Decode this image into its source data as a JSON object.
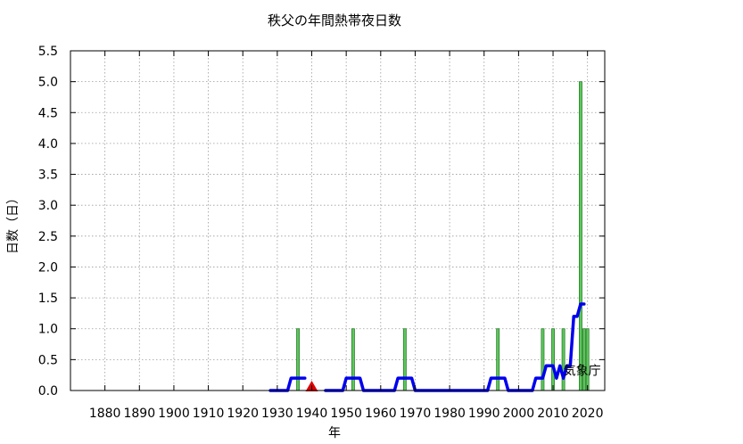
{
  "chart_data": {
    "type": "bar",
    "title": "秩父の年間熱帯夜日数",
    "xlabel": "年",
    "ylabel": "日数（日）",
    "xlim": [
      1870,
      2025
    ],
    "ylim": [
      0,
      5.5
    ],
    "x_ticks": [
      1880,
      1890,
      1900,
      1910,
      1920,
      1930,
      1940,
      1950,
      1960,
      1970,
      1980,
      1990,
      2000,
      2010,
      2020
    ],
    "y_ticks": [
      "0.0",
      "0.5",
      "1.0",
      "1.5",
      "2.0",
      "2.5",
      "3.0",
      "3.5",
      "4.0",
      "4.5",
      "5.0",
      "5.5"
    ],
    "grid": true,
    "series": [
      {
        "type": "bar",
        "color": "#5cc85c",
        "points": [
          {
            "x": 1936,
            "y": 1
          },
          {
            "x": 1952,
            "y": 1
          },
          {
            "x": 1967,
            "y": 1
          },
          {
            "x": 1994,
            "y": 1
          },
          {
            "x": 2007,
            "y": 1
          },
          {
            "x": 2010,
            "y": 1
          },
          {
            "x": 2013,
            "y": 1
          },
          {
            "x": 2018,
            "y": 5
          },
          {
            "x": 2019,
            "y": 1
          },
          {
            "x": 2020,
            "y": 1
          }
        ]
      },
      {
        "type": "line",
        "color": "#0000ee",
        "segments": [
          [
            {
              "x": 1928,
              "y": 0
            },
            {
              "x": 1933,
              "y": 0
            },
            {
              "x": 1934,
              "y": 0.2
            },
            {
              "x": 1938,
              "y": 0.2
            }
          ],
          [
            {
              "x": 1944,
              "y": 0
            },
            {
              "x": 1949,
              "y": 0
            },
            {
              "x": 1950,
              "y": 0.2
            },
            {
              "x": 1954,
              "y": 0.2
            },
            {
              "x": 1955,
              "y": 0
            },
            {
              "x": 1964,
              "y": 0
            },
            {
              "x": 1965,
              "y": 0.2
            },
            {
              "x": 1969,
              "y": 0.2
            },
            {
              "x": 1970,
              "y": 0
            },
            {
              "x": 1991,
              "y": 0
            },
            {
              "x": 1992,
              "y": 0.2
            },
            {
              "x": 1996,
              "y": 0.2
            },
            {
              "x": 1997,
              "y": 0
            },
            {
              "x": 2004,
              "y": 0
            },
            {
              "x": 2005,
              "y": 0.2
            },
            {
              "x": 2007,
              "y": 0.2
            },
            {
              "x": 2008,
              "y": 0.4
            },
            {
              "x": 2010,
              "y": 0.4
            },
            {
              "x": 2011,
              "y": 0.2
            },
            {
              "x": 2012,
              "y": 0.4
            },
            {
              "x": 2013,
              "y": 0.2
            },
            {
              "x": 2014,
              "y": 0.4
            },
            {
              "x": 2015,
              "y": 0.4
            },
            {
              "x": 2016,
              "y": 1.2
            },
            {
              "x": 2017,
              "y": 1.2
            },
            {
              "x": 2018,
              "y": 1.4
            },
            {
              "x": 2019,
              "y": 1.4
            }
          ]
        ]
      }
    ],
    "markers": [
      {
        "shape": "triangle",
        "color": "#e00000",
        "x": 1940,
        "y": 0
      }
    ],
    "annotations": [
      {
        "text": "気象庁",
        "x": 2013,
        "y": 0.25
      }
    ]
  }
}
